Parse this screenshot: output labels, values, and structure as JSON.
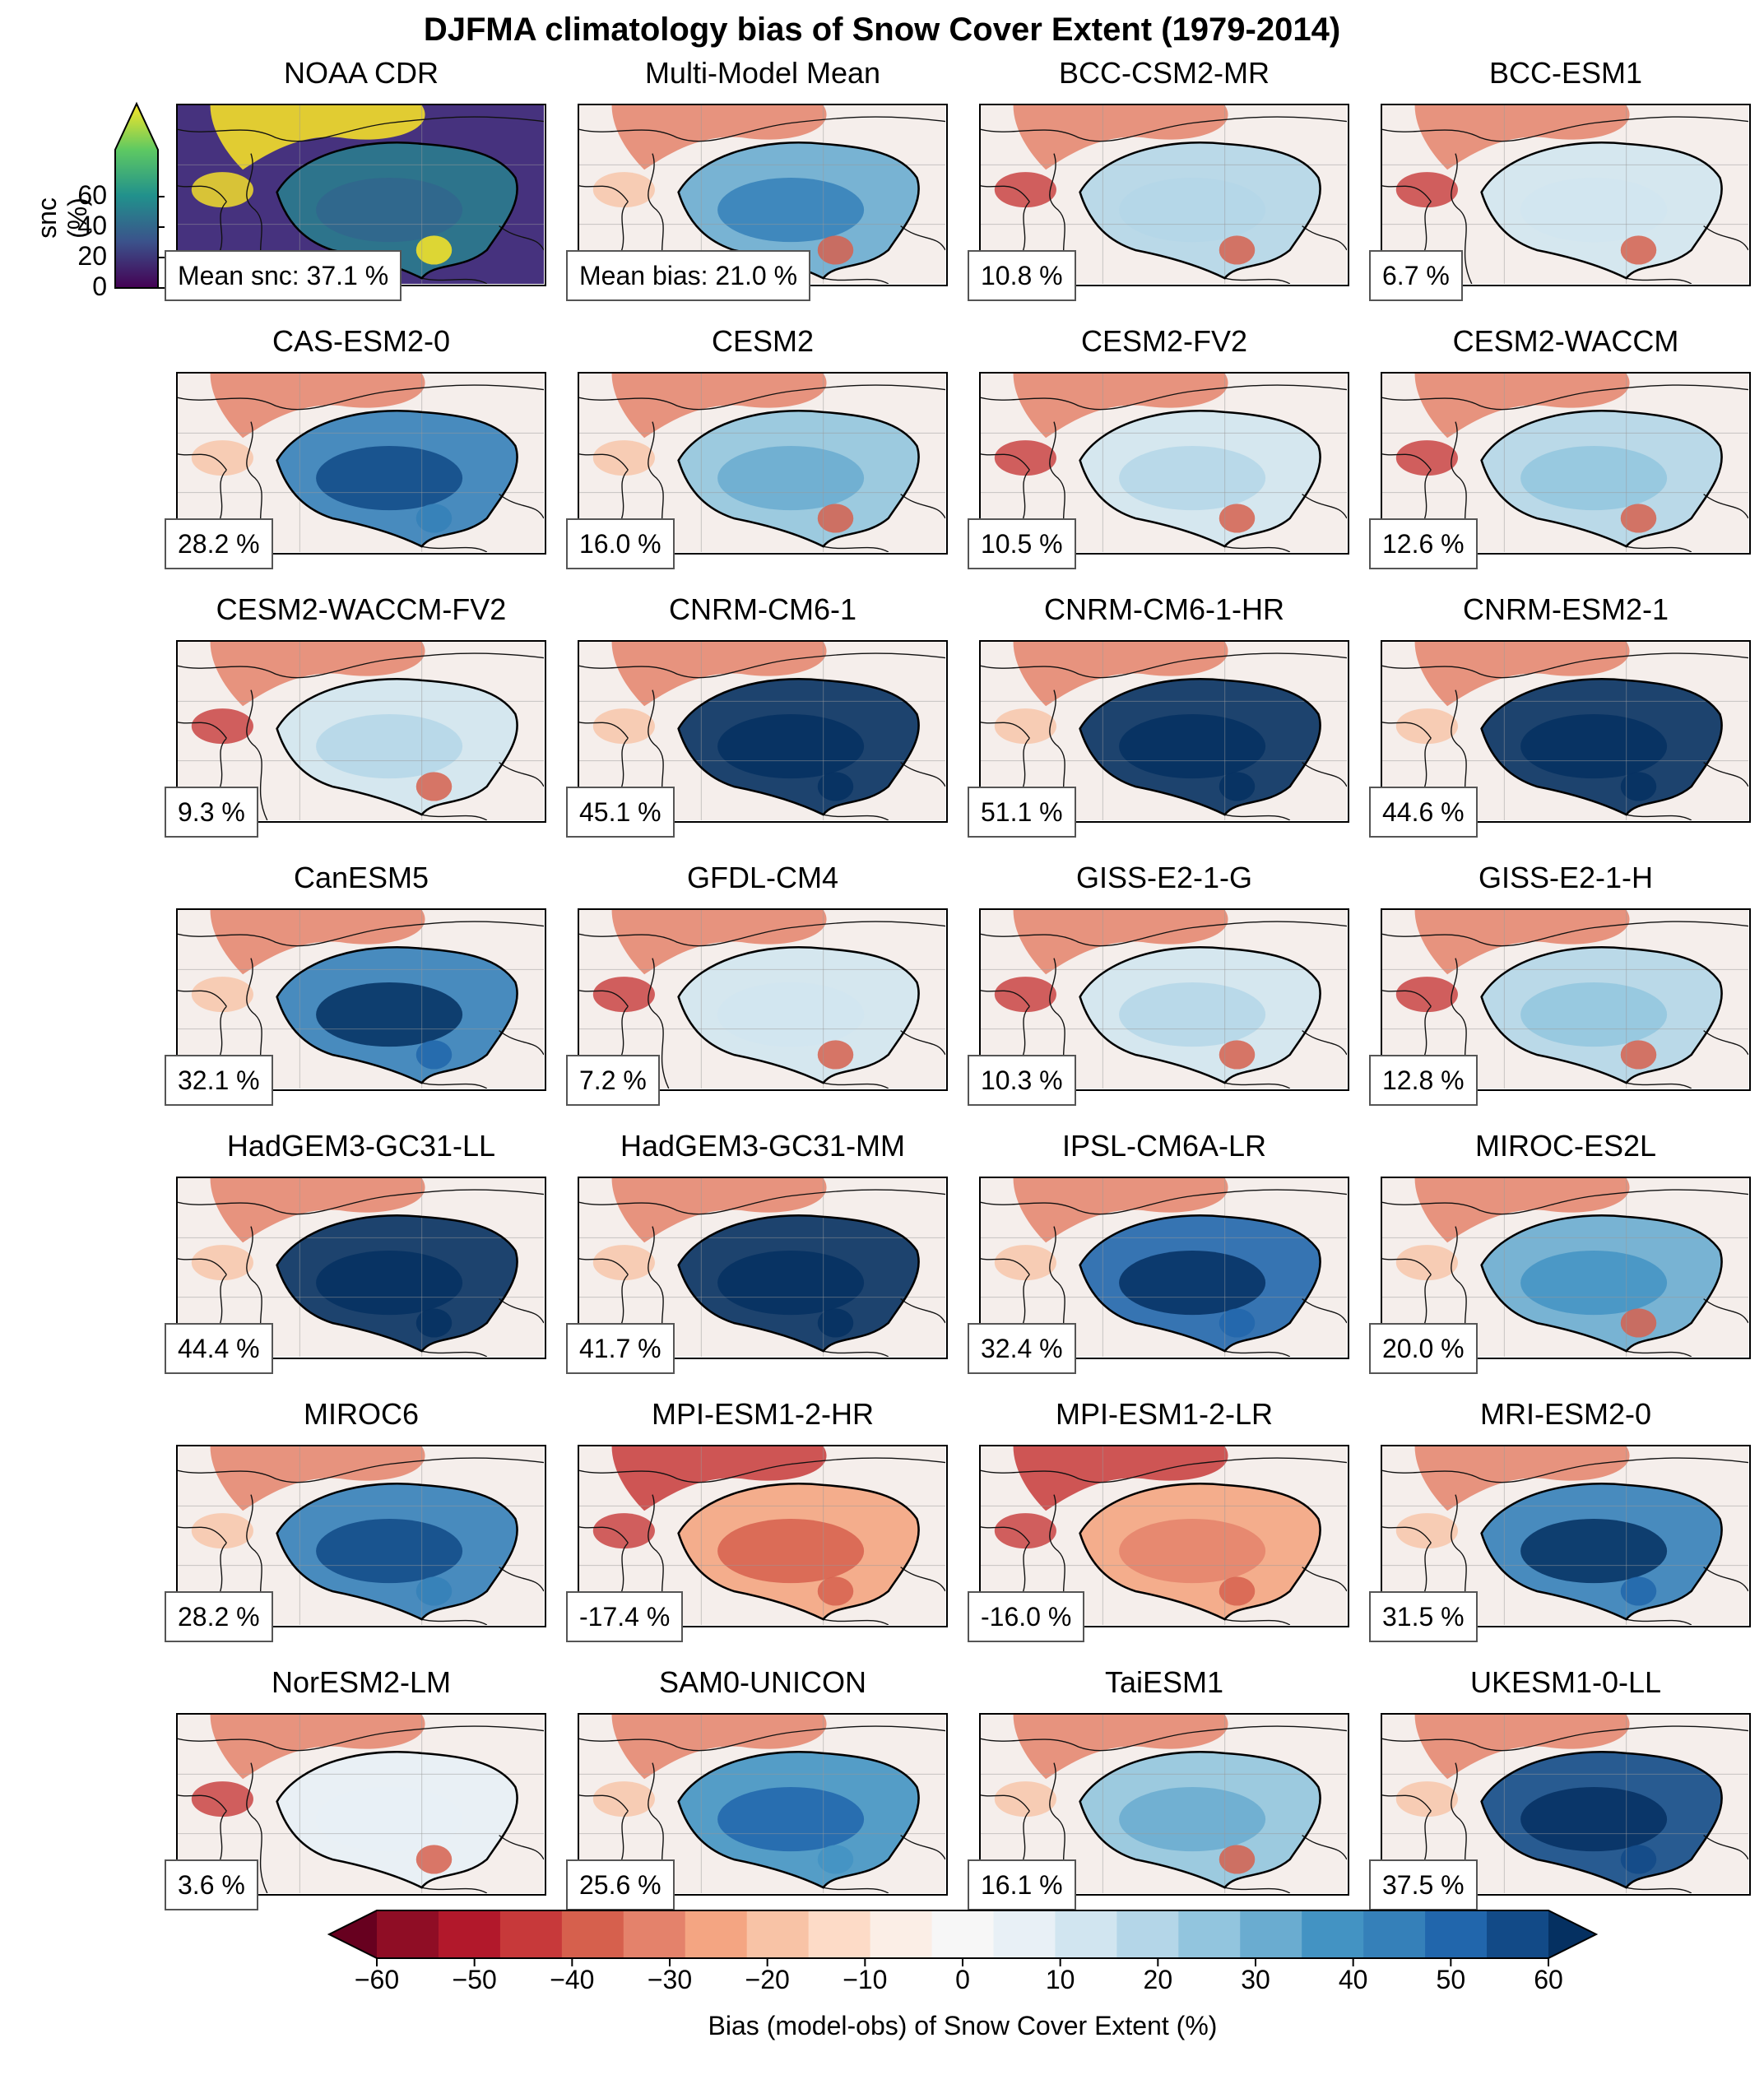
{
  "title": "DJFMA climatology bias of Snow Cover Extent (1979-2014)",
  "obs_colorbar": {
    "label": "snc (%)",
    "ticks": [
      "60",
      "40",
      "20",
      "0"
    ],
    "colors": [
      "#440154",
      "#3b528b",
      "#21918c",
      "#5ec962",
      "#fde725"
    ]
  },
  "bias_colorbar": {
    "label": "Bias (model-obs) of Snow Cover Extent (%)",
    "ticks": [
      "−60",
      "−50",
      "−40",
      "−30",
      "−20",
      "−10",
      "0",
      "10",
      "20",
      "30",
      "40",
      "50",
      "60"
    ],
    "colors": [
      "#67001f",
      "#8f0d25",
      "#b2182b",
      "#c7393a",
      "#d6604d",
      "#e4826b",
      "#f4a582",
      "#f8c3a6",
      "#fddbc7",
      "#fbeee6",
      "#f7f7f7",
      "#e8f0f6",
      "#d1e5f0",
      "#b4d6e8",
      "#92c5de",
      "#6aacd0",
      "#4393c3",
      "#3580b9",
      "#2166ac",
      "#124a87",
      "#053061"
    ]
  },
  "panels": [
    {
      "name": "NOAA CDR",
      "stat": "Mean snc: 37.1 %",
      "value": 37.1
    },
    {
      "name": "Multi-Model Mean",
      "stat": "Mean bias: 21.0 %",
      "value": 21.0
    },
    {
      "name": "BCC-CSM2-MR",
      "stat": "10.8 %",
      "value": 10.8
    },
    {
      "name": "BCC-ESM1",
      "stat": "6.7 %",
      "value": 6.7
    },
    {
      "name": "CAS-ESM2-0",
      "stat": "28.2 %",
      "value": 28.2
    },
    {
      "name": "CESM2",
      "stat": "16.0 %",
      "value": 16.0
    },
    {
      "name": "CESM2-FV2",
      "stat": "10.5 %",
      "value": 10.5
    },
    {
      "name": "CESM2-WACCM",
      "stat": "12.6 %",
      "value": 12.6
    },
    {
      "name": "CESM2-WACCM-FV2",
      "stat": "9.3 %",
      "value": 9.3
    },
    {
      "name": "CNRM-CM6-1",
      "stat": "45.1 %",
      "value": 45.1
    },
    {
      "name": "CNRM-CM6-1-HR",
      "stat": "51.1 %",
      "value": 51.1
    },
    {
      "name": "CNRM-ESM2-1",
      "stat": "44.6 %",
      "value": 44.6
    },
    {
      "name": "CanESM5",
      "stat": "32.1 %",
      "value": 32.1
    },
    {
      "name": "GFDL-CM4",
      "stat": "7.2 %",
      "value": 7.2
    },
    {
      "name": "GISS-E2-1-G",
      "stat": "10.3 %",
      "value": 10.3
    },
    {
      "name": "GISS-E2-1-H",
      "stat": "12.8 %",
      "value": 12.8
    },
    {
      "name": "HadGEM3-GC31-LL",
      "stat": "44.4 %",
      "value": 44.4
    },
    {
      "name": "HadGEM3-GC31-MM",
      "stat": "41.7 %",
      "value": 41.7
    },
    {
      "name": "IPSL-CM6A-LR",
      "stat": "32.4 %",
      "value": 32.4
    },
    {
      "name": "MIROC-ES2L",
      "stat": "20.0 %",
      "value": 20.0
    },
    {
      "name": "MIROC6",
      "stat": "28.2 %",
      "value": 28.2
    },
    {
      "name": "MPI-ESM1-2-HR",
      "stat": "-17.4 %",
      "value": -17.4
    },
    {
      "name": "MPI-ESM1-2-LR",
      "stat": "-16.0 %",
      "value": -16.0
    },
    {
      "name": "MRI-ESM2-0",
      "stat": "31.5 %",
      "value": 31.5
    },
    {
      "name": "NorESM2-LM",
      "stat": "3.6 %",
      "value": 3.6
    },
    {
      "name": "SAM0-UNICON",
      "stat": "25.6 %",
      "value": 25.6
    },
    {
      "name": "TaiESM1",
      "stat": "16.1 %",
      "value": 16.1
    },
    {
      "name": "UKESM1-0-LL",
      "stat": "37.5 %",
      "value": 37.5
    }
  ]
}
